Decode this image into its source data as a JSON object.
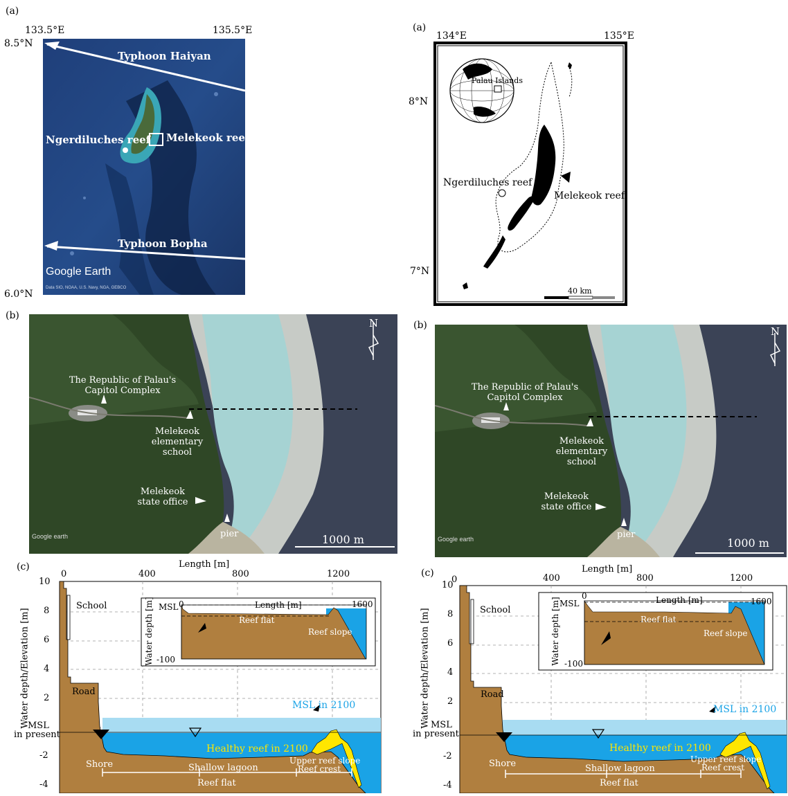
{
  "panel_a_left": {
    "label": "(a)",
    "lon_left": "133.5°E",
    "lon_right": "135.5°E",
    "lat_top": "8.5°N",
    "lat_bottom": "6.0°N",
    "typhoon1": "Typhoon Haiyan",
    "typhoon2": "Typhoon Bopha",
    "site1": "Ngerdiluches reef",
    "site2": "Melekeok reef",
    "google": "Google Earth",
    "credit": "Data SIO, NOAA, U.S. Navy, NGA, GEBCO"
  },
  "panel_a_right": {
    "label": "(a)",
    "lon_left": "134°E",
    "lon_right": "135°E",
    "lat_top": "8°N",
    "lat_bottom": "7°N",
    "globe_label": "Palau Islands",
    "site1": "Ngerdiluches reef",
    "site2": "Melekeok reef",
    "scale": "40 km"
  },
  "panel_b": {
    "label": "(b)",
    "capitol": "The Republic of Palau's",
    "capitol2": "Capitol Complex",
    "school1": "Melekeok",
    "school2": "elementary",
    "school3": "school",
    "office1": "Melekeok",
    "office2": "state office",
    "pier": "pier",
    "scale": "1000 m",
    "north": "N",
    "google": "Google earth"
  },
  "panel_c": {
    "label": "(c)",
    "xlabel": "Length [m]",
    "ylabel": "Water depth/Elevation [m]",
    "xticks": [
      "0",
      "400",
      "800",
      "1200"
    ],
    "yticks": [
      "10",
      "8",
      "6",
      "4",
      "2",
      "MSL",
      "in present",
      "-2",
      "-4"
    ],
    "school": "School",
    "road": "Road",
    "msl2100": "MSL in 2100",
    "healthy": "Healthy reef in 2100",
    "shore": "Shore",
    "lagoon": "Shallow lagoon",
    "reefflat": "Reef flat",
    "upper": "Upper reef slope",
    "crest": "Reef crest",
    "inset": {
      "xlabel": "Length [m]",
      "ylabel": "Water depth [m]",
      "x0": "0",
      "x1": "1600",
      "msl": "MSL",
      "ymin": "-100",
      "reefflat": "Reef flat",
      "reefslope": "Reef slope"
    }
  },
  "colors": {
    "ground": "#b07f3f",
    "water": "#1aa3e6",
    "future_water": "#a8dcf2",
    "reef": "#ffe600",
    "msl_text": "#1aa3e6",
    "healthy_text": "#ffe600"
  }
}
